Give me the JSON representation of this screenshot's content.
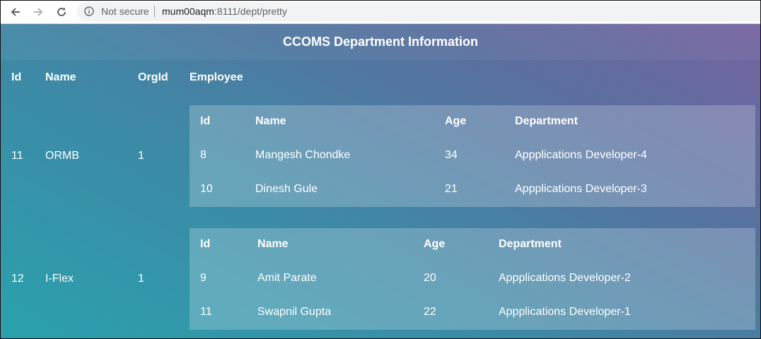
{
  "browser": {
    "security_label": "Not secure",
    "url_host": "mum00aqm",
    "url_rest": ":8111/dept/pretty"
  },
  "page": {
    "title": "CCOMS Department Information",
    "headers": {
      "id": "Id",
      "name": "Name",
      "org_id": "OrgId",
      "employee": "Employee"
    },
    "departments": [
      {
        "id": "11",
        "name": "ORMB",
        "org_id": "1",
        "employee_table": {
          "headers": {
            "id": "Id",
            "name": "Name",
            "age": "Age",
            "department": "Department"
          },
          "rows": [
            {
              "id": "8",
              "name": "Mangesh Chondke",
              "age": "34",
              "department": "Appplications Developer-4"
            },
            {
              "id": "10",
              "name": "Dinesh Gule",
              "age": "21",
              "department": "Appplications Developer-3"
            }
          ]
        }
      },
      {
        "id": "12",
        "name": "I-Flex",
        "org_id": "1",
        "employee_table": {
          "headers": {
            "id": "Id",
            "name": "Name",
            "age": "Age",
            "department": "Department"
          },
          "rows": [
            {
              "id": "9",
              "name": "Amit Parate",
              "age": "20",
              "department": "Appplications Developer-2"
            },
            {
              "id": "11",
              "name": "Swapnil Gupta",
              "age": "22",
              "department": "Appplications Developer-1"
            }
          ]
        }
      }
    ]
  },
  "icons": {
    "back": "arrow-left",
    "forward": "arrow-right",
    "reload": "reload",
    "info": "info-circle"
  },
  "colors": {
    "gradient_start": "#2aa1ad",
    "gradient_end": "#7563a0",
    "text": "#ffffff"
  }
}
